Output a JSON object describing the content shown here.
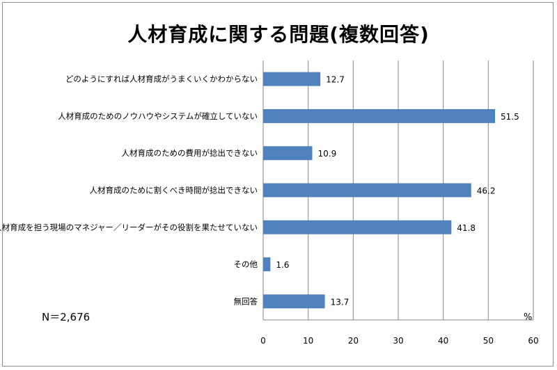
{
  "chart_data": {
    "type": "bar",
    "orientation": "horizontal",
    "title": "人材育成に関する問題(複数回答)",
    "note": "N＝2,676",
    "unit": "%",
    "categories": [
      "どのようにすれば人材育成がうまくいくかわからない",
      "人材育成のためのノウハウやシステムが確立していない",
      "人材育成のための費用が捻出できない",
      "人材育成のために割くべき時間が捻出できない",
      "人材育成を担う現場のマネジャー／リーダーがその役割を果たせていない",
      "その他",
      "無回答"
    ],
    "values": [
      12.7,
      51.5,
      10.9,
      46.2,
      41.8,
      1.6,
      13.7
    ],
    "value_labels": [
      "12.7",
      "51.5",
      "10.9",
      "46.2",
      "41.8",
      "1.6",
      "13.7"
    ],
    "xlim": [
      0,
      60
    ],
    "xticks": [
      0,
      10,
      20,
      30,
      40,
      50,
      60
    ],
    "bar_color": "#4f81bd",
    "grid": true
  }
}
